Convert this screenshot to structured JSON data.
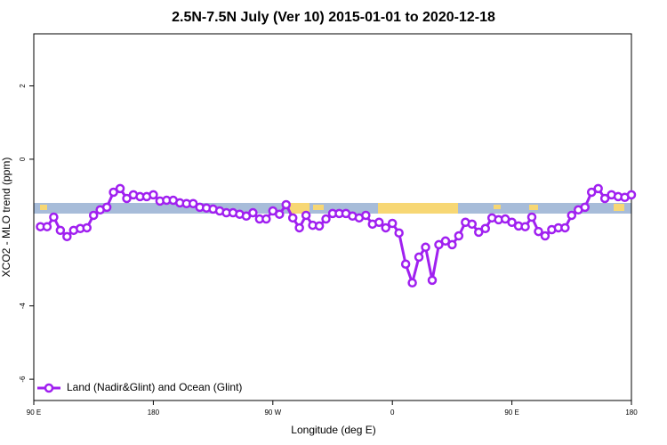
{
  "chart_data": {
    "type": "line",
    "title": "2.5N-7.5N July (Ver 10)   2015-01-01 to 2020-12-18",
    "x_label": "Longitude (deg E)",
    "y_label": "XCO2 - MLO trend (ppm)",
    "xlim": [
      90,
      540
    ],
    "ylim": [
      -6.58,
      3.42
    ],
    "xticks": [
      {
        "value": 90,
        "label": "90 E"
      },
      {
        "value": 180,
        "label": "180"
      },
      {
        "value": 270,
        "label": "90 W"
      },
      {
        "value": 360,
        "label": "0"
      },
      {
        "value": 450,
        "label": "90 E"
      },
      {
        "value": 540,
        "label": "180"
      }
    ],
    "yticks": [
      2,
      0,
      -4,
      -6
    ],
    "legend": "bottom-left",
    "x": [
      95,
      100,
      105,
      110,
      115,
      120,
      125,
      130,
      135,
      140,
      145,
      150,
      155,
      160,
      165,
      170,
      175,
      180,
      185,
      190,
      195,
      200,
      205,
      210,
      215,
      220,
      225,
      230,
      235,
      240,
      245,
      250,
      255,
      260,
      265,
      270,
      275,
      280,
      285,
      290,
      295,
      300,
      305,
      310,
      315,
      320,
      325,
      330,
      335,
      340,
      345,
      350,
      355,
      360,
      365,
      370,
      375,
      380,
      385,
      390,
      395,
      400,
      405,
      410,
      415,
      420,
      425,
      430,
      435,
      440,
      445,
      450,
      455,
      460,
      465,
      470,
      475,
      480,
      485,
      490,
      495,
      500,
      505,
      510,
      515,
      520,
      525,
      530,
      535,
      540
    ],
    "series": [
      {
        "name": "Land (Nadir&Glint) and Ocean (Glint)",
        "color": "#a020f0",
        "values": [
          -1.84,
          -1.84,
          -1.58,
          -1.94,
          -2.11,
          -1.94,
          -1.89,
          -1.87,
          -1.53,
          -1.38,
          -1.31,
          -0.9,
          -0.8,
          -1.07,
          -0.97,
          -1.02,
          -1.02,
          -0.97,
          -1.14,
          -1.12,
          -1.12,
          -1.19,
          -1.21,
          -1.21,
          -1.31,
          -1.33,
          -1.36,
          -1.41,
          -1.46,
          -1.46,
          -1.5,
          -1.55,
          -1.46,
          -1.63,
          -1.63,
          -1.41,
          -1.5,
          -1.24,
          -1.6,
          -1.87,
          -1.53,
          -1.8,
          -1.82,
          -1.63,
          -1.48,
          -1.48,
          -1.48,
          -1.55,
          -1.6,
          -1.53,
          -1.77,
          -1.72,
          -1.87,
          -1.75,
          -2.01,
          -2.86,
          -3.37,
          -2.67,
          -2.4,
          -3.3,
          -2.33,
          -2.23,
          -2.33,
          -2.09,
          -1.72,
          -1.77,
          -1.99,
          -1.89,
          -1.6,
          -1.65,
          -1.63,
          -1.72,
          -1.82,
          -1.84,
          -1.58,
          -1.97,
          -2.09,
          -1.92,
          -1.87,
          -1.87,
          -1.53,
          -1.38,
          -1.31,
          -0.9,
          -0.8,
          -1.07,
          -0.97,
          -1.02,
          -1.04,
          -0.97
        ]
      }
    ]
  }
}
